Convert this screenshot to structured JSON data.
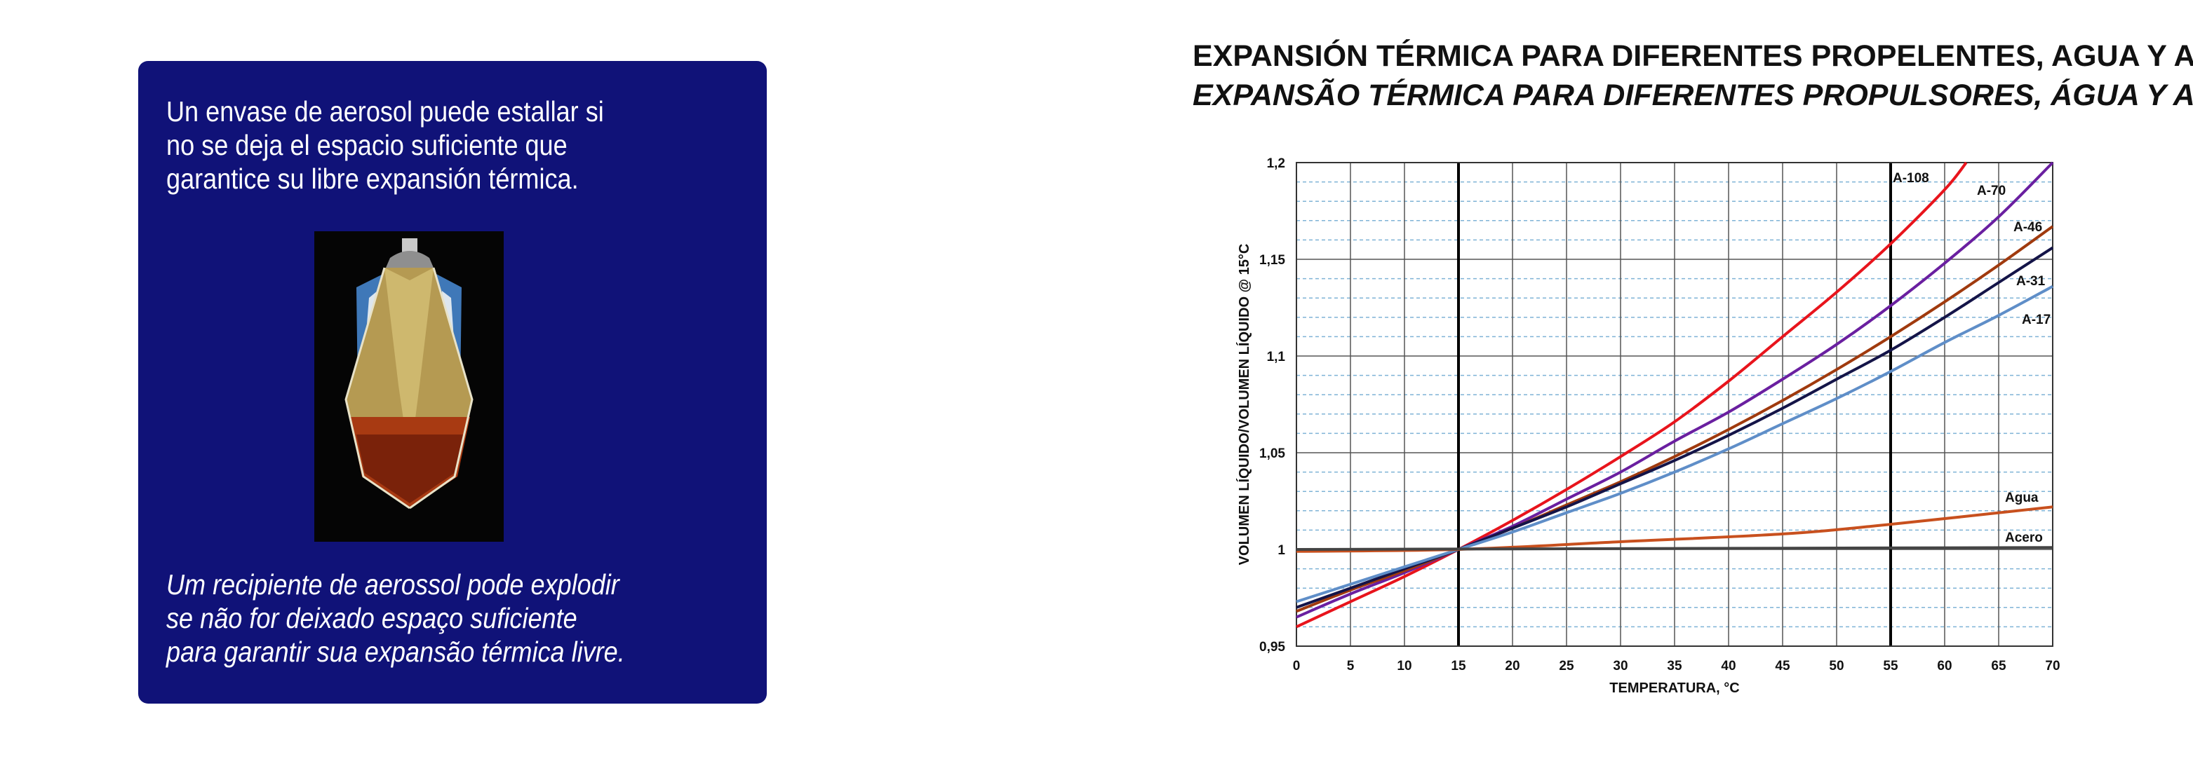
{
  "info_card": {
    "text_es": "Un envase de aerosol puede estallar si\nno se deja el espacio suficiente que\ngarantice su libre expansión térmica.",
    "text_pt": "Um recipiente de aerossol pode explodir\nse não for deixado espaço suficiente\npara garantir sua expansão térmica livre.",
    "card_color": "#101278"
  },
  "chart_data": {
    "type": "line",
    "title": "EXPANSIÓN TÉRMICA PARA DIFERENTES PROPELENTES, AGUA Y ACERO",
    "subtitle": "EXPANSÃO TÉRMICA PARA DIFERENTES PROPULSORES, ÁGUA Y AÇO",
    "xlabel": "TEMPERATURA, °C",
    "ylabel": "VOLUMEN LÍQUIDO/VOLUMEN LÍQUIDO @ 15°C",
    "xlim": [
      0,
      70
    ],
    "ylim": [
      0.95,
      1.2
    ],
    "x_ticks": [
      "0",
      "5",
      "10",
      "15",
      "20",
      "25",
      "30",
      "35",
      "40",
      "45",
      "50",
      "55",
      "60",
      "65",
      "70"
    ],
    "y_ticks": [
      "0,95",
      "1",
      "1,05",
      "1,1",
      "1,15",
      "1,2"
    ],
    "reference_lines_x": [
      15,
      55
    ],
    "grid": true,
    "series": [
      {
        "name": "A-108",
        "color": "#e8141c",
        "x": [
          0,
          5,
          10,
          15,
          20,
          25,
          30,
          35,
          40,
          45,
          50,
          55,
          60,
          62
        ],
        "y": [
          0.96,
          0.973,
          0.986,
          1.0,
          1.015,
          1.031,
          1.048,
          1.066,
          1.087,
          1.11,
          1.133,
          1.158,
          1.186,
          1.2
        ]
      },
      {
        "name": "A-70",
        "color": "#6a1fa0",
        "x": [
          0,
          5,
          10,
          15,
          20,
          25,
          30,
          35,
          40,
          45,
          50,
          55,
          60,
          65,
          70
        ],
        "y": [
          0.965,
          0.977,
          0.988,
          1.0,
          1.012,
          1.026,
          1.04,
          1.056,
          1.071,
          1.088,
          1.106,
          1.126,
          1.148,
          1.172,
          1.2
        ]
      },
      {
        "name": "A-46",
        "color": "#a03a0e",
        "x": [
          0,
          5,
          10,
          15,
          20,
          25,
          30,
          35,
          40,
          45,
          50,
          55,
          60,
          65,
          70
        ],
        "y": [
          0.968,
          0.979,
          0.989,
          1.0,
          1.011,
          1.023,
          1.035,
          1.048,
          1.062,
          1.077,
          1.093,
          1.11,
          1.128,
          1.147,
          1.167
        ]
      },
      {
        "name": "A-31",
        "color": "#141448",
        "x": [
          0,
          5,
          10,
          15,
          20,
          25,
          30,
          35,
          40,
          45,
          50,
          55,
          60,
          65,
          70
        ],
        "y": [
          0.97,
          0.98,
          0.99,
          1.0,
          1.011,
          1.022,
          1.034,
          1.046,
          1.059,
          1.073,
          1.088,
          1.103,
          1.12,
          1.138,
          1.156
        ]
      },
      {
        "name": "A-17",
        "color": "#5f8ec8",
        "x": [
          0,
          5,
          10,
          15,
          20,
          25,
          30,
          35,
          40,
          45,
          50,
          55,
          60,
          65,
          70
        ],
        "y": [
          0.973,
          0.982,
          0.991,
          1.0,
          1.009,
          1.019,
          1.029,
          1.04,
          1.052,
          1.065,
          1.078,
          1.092,
          1.107,
          1.121,
          1.136
        ]
      },
      {
        "name": "Agua",
        "color": "#c8501e",
        "x": [
          0,
          15,
          30,
          45,
          55,
          70
        ],
        "y": [
          0.999,
          1.0,
          1.004,
          1.008,
          1.013,
          1.022
        ]
      },
      {
        "name": "Acero",
        "color": "#444444",
        "x": [
          0,
          70
        ],
        "y": [
          1.0,
          1.001
        ]
      }
    ]
  }
}
